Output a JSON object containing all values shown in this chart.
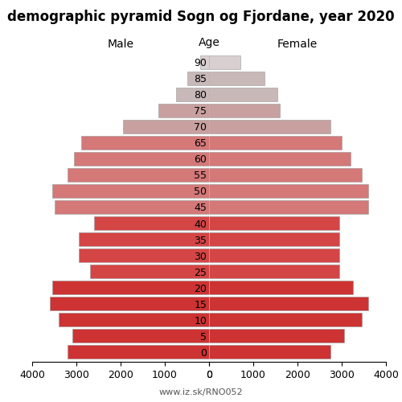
{
  "title": "demographic pyramid Sogn og Fjordane, year 2020",
  "male_label": "Male",
  "female_label": "Female",
  "age_label": "Age",
  "watermark": "www.iz.sk/RNO052",
  "age_groups": [
    0,
    5,
    10,
    15,
    20,
    25,
    30,
    35,
    40,
    45,
    50,
    55,
    60,
    65,
    70,
    75,
    80,
    85,
    90
  ],
  "male_values": [
    3200,
    3100,
    3400,
    3600,
    3550,
    2700,
    2950,
    2950,
    2600,
    3500,
    3550,
    3200,
    3050,
    2900,
    1950,
    1150,
    750,
    500,
    200
  ],
  "female_values": [
    2750,
    3050,
    3450,
    3600,
    3250,
    2950,
    2950,
    2950,
    2950,
    3600,
    3600,
    3450,
    3200,
    3000,
    2750,
    1600,
    1550,
    1250,
    700
  ],
  "male_colors": [
    "#cd3333",
    "#cd3333",
    "#cd3333",
    "#cd3333",
    "#cd3333",
    "#d44545",
    "#d44545",
    "#d44545",
    "#d44545",
    "#d47878",
    "#d47878",
    "#d47878",
    "#d47878",
    "#d47878",
    "#c8a0a0",
    "#c8a0a0",
    "#c8b8b8",
    "#c8b8b8",
    "#d8d0d0"
  ],
  "female_colors": [
    "#cd3333",
    "#cd3333",
    "#cd3333",
    "#cd3333",
    "#cd3333",
    "#d44545",
    "#d44545",
    "#d44545",
    "#d44545",
    "#d47878",
    "#d47878",
    "#d47878",
    "#d47878",
    "#d47878",
    "#c8a0a0",
    "#c8a0a0",
    "#c8b8b8",
    "#c8b8b8",
    "#d8d0d0"
  ],
  "xlim": 4000,
  "xticks_male": [
    4000,
    3000,
    2000,
    1000,
    0
  ],
  "xticks_female": [
    0,
    1000,
    2000,
    3000,
    4000
  ],
  "bar_height": 0.85,
  "background_color": "#ffffff",
  "title_fontsize": 12,
  "axis_fontsize": 9
}
